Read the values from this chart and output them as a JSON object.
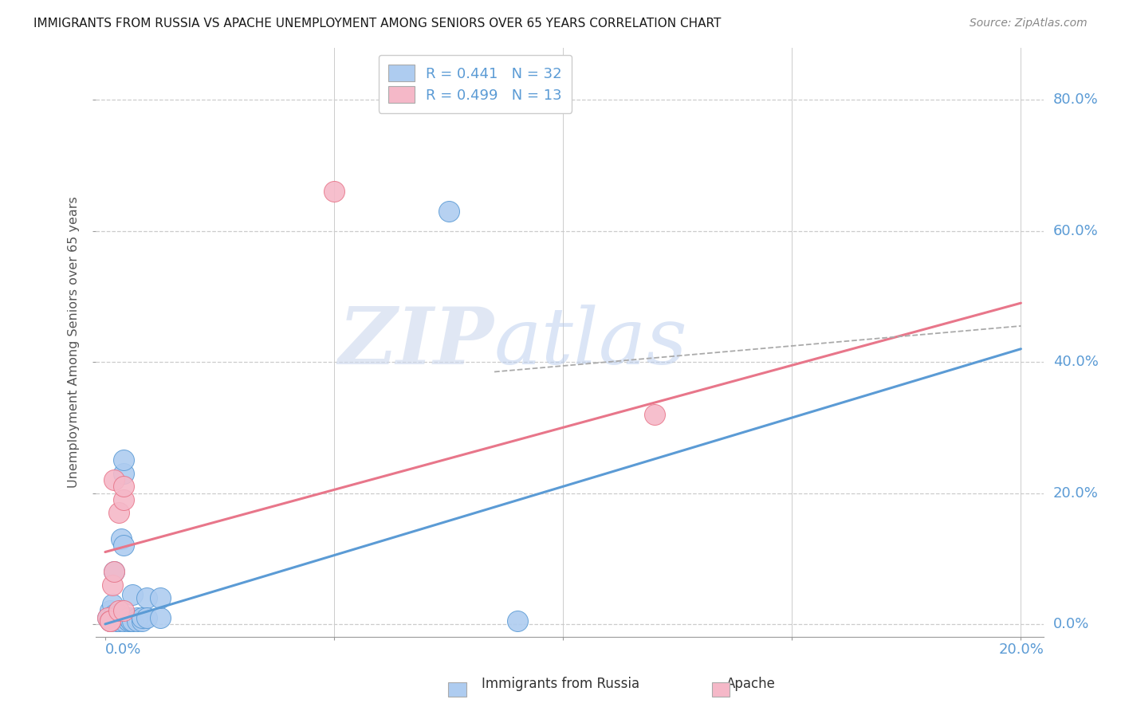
{
  "title": "IMMIGRANTS FROM RUSSIA VS APACHE UNEMPLOYMENT AMONG SENIORS OVER 65 YEARS CORRELATION CHART",
  "source": "Source: ZipAtlas.com",
  "ylabel": "Unemployment Among Seniors over 65 years",
  "legend_r_russia": "R = 0.441",
  "legend_n_russia": "N = 32",
  "legend_r_apache": "R = 0.499",
  "legend_n_apache": "N = 13",
  "color_russia": "#aeccf0",
  "color_apache": "#f5b8c8",
  "color_russia_line": "#5b9bd5",
  "color_apache_line": "#e8768a",
  "color_russia_dark": "#5b9bd5",
  "color_apache_dark": "#e8768a",
  "watermark_zip": "ZIP",
  "watermark_atlas": "atlas",
  "russia_points": [
    [
      0.0005,
      0.01
    ],
    [
      0.001,
      0.02
    ],
    [
      0.001,
      0.01
    ],
    [
      0.001,
      0.005
    ],
    [
      0.0015,
      0.03
    ],
    [
      0.002,
      0.01
    ],
    [
      0.002,
      0.015
    ],
    [
      0.002,
      0.08
    ],
    [
      0.0025,
      0.005
    ],
    [
      0.003,
      0.005
    ],
    [
      0.003,
      0.01
    ],
    [
      0.003,
      0.015
    ],
    [
      0.0035,
      0.13
    ],
    [
      0.004,
      0.12
    ],
    [
      0.004,
      0.005
    ],
    [
      0.004,
      0.23
    ],
    [
      0.004,
      0.25
    ],
    [
      0.005,
      0.005
    ],
    [
      0.005,
      0.01
    ],
    [
      0.0055,
      0.005
    ],
    [
      0.006,
      0.005
    ],
    [
      0.006,
      0.045
    ],
    [
      0.007,
      0.01
    ],
    [
      0.007,
      0.005
    ],
    [
      0.008,
      0.005
    ],
    [
      0.008,
      0.01
    ],
    [
      0.009,
      0.04
    ],
    [
      0.009,
      0.01
    ],
    [
      0.012,
      0.01
    ],
    [
      0.012,
      0.04
    ],
    [
      0.075,
      0.63
    ],
    [
      0.09,
      0.005
    ]
  ],
  "apache_points": [
    [
      0.0005,
      0.01
    ],
    [
      0.001,
      0.005
    ],
    [
      0.001,
      0.005
    ],
    [
      0.0015,
      0.06
    ],
    [
      0.002,
      0.08
    ],
    [
      0.002,
      0.22
    ],
    [
      0.003,
      0.02
    ],
    [
      0.003,
      0.17
    ],
    [
      0.004,
      0.02
    ],
    [
      0.004,
      0.19
    ],
    [
      0.004,
      0.21
    ],
    [
      0.12,
      0.32
    ],
    [
      0.05,
      0.66
    ]
  ],
  "russia_line_x": [
    0.0,
    0.2
  ],
  "russia_line_y": [
    0.0,
    0.42
  ],
  "apache_line_x": [
    0.0,
    0.2
  ],
  "apache_line_y": [
    0.11,
    0.49
  ],
  "dash_line_x": [
    0.085,
    0.2
  ],
  "dash_line_y": [
    0.385,
    0.455
  ],
  "xlim": [
    -0.002,
    0.205
  ],
  "ylim": [
    -0.02,
    0.88
  ],
  "xaxis_ticks": [
    0.0,
    0.05,
    0.1,
    0.15,
    0.2
  ],
  "yaxis_ticks": [
    0.0,
    0.2,
    0.4,
    0.6,
    0.8
  ]
}
